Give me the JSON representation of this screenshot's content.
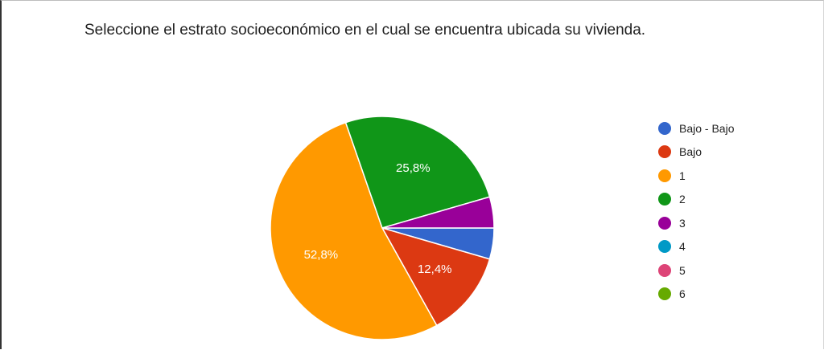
{
  "chart_data": {
    "type": "pie",
    "title": "Seleccione el estrato socioeconómico en el cual se encuentra ubicada su vivienda.",
    "categories": [
      "Bajo - Bajo",
      "Bajo",
      "1",
      "2",
      "3",
      "4",
      "5",
      "6"
    ],
    "values": [
      4.5,
      12.4,
      52.8,
      25.8,
      4.5,
      0,
      0,
      0
    ],
    "data_labels": [
      "",
      "12,4%",
      "52,8%",
      "25,8%",
      "",
      "",
      "",
      ""
    ],
    "colors": [
      "#3366cc",
      "#dc3912",
      "#ff9900",
      "#109618",
      "#990099",
      "#0099c6",
      "#dd4477",
      "#66aa00"
    ],
    "legend_position": "right"
  }
}
